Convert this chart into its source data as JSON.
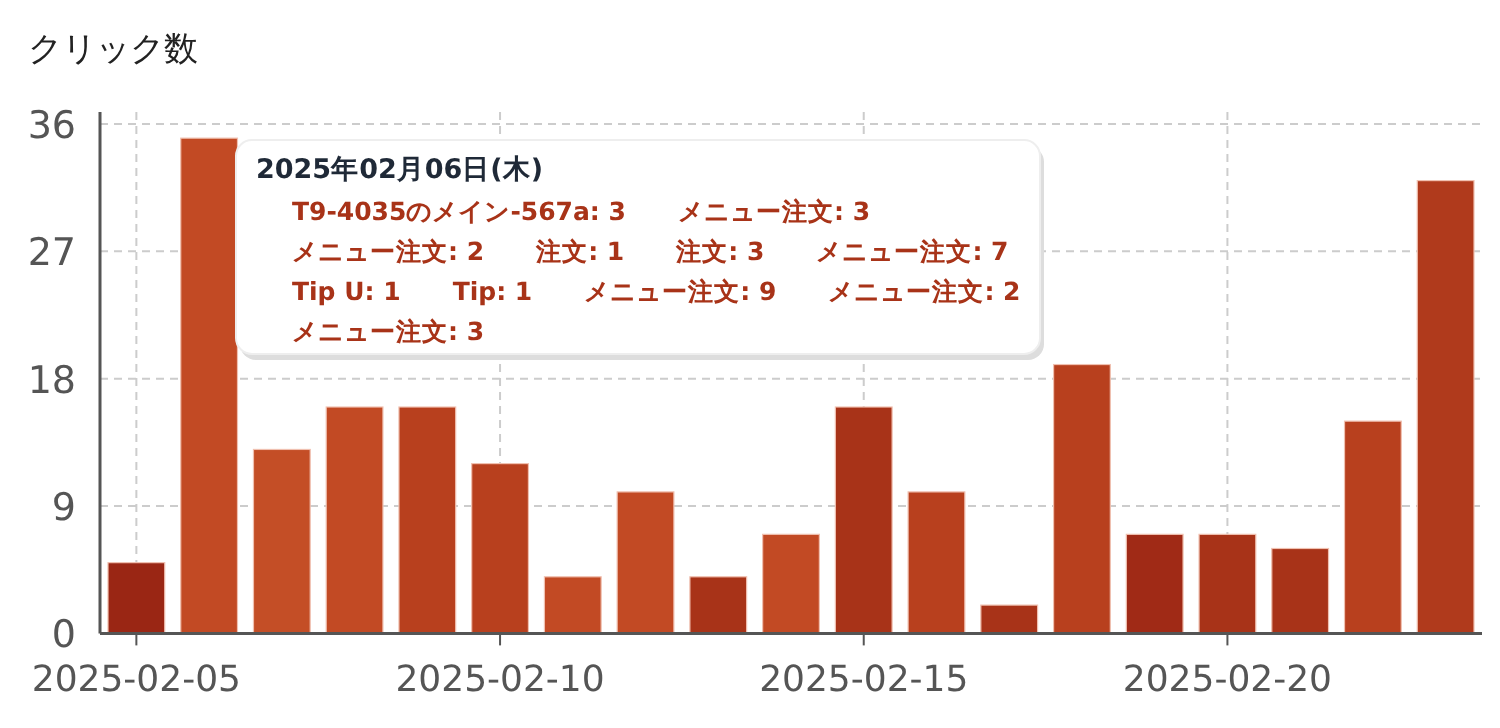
{
  "chart_data": {
    "type": "bar",
    "title": "クリック数",
    "x": [
      "2025-02-05",
      "2025-02-06",
      "2025-02-07",
      "2025-02-08",
      "2025-02-09",
      "2025-02-10",
      "2025-02-11",
      "2025-02-12",
      "2025-02-13",
      "2025-02-14",
      "2025-02-15",
      "2025-02-16",
      "2025-02-17",
      "2025-02-18",
      "2025-02-19",
      "2025-02-20",
      "2025-02-21",
      "2025-02-22",
      "2025-02-23"
    ],
    "values": [
      5,
      35,
      13,
      16,
      16,
      12,
      4,
      10,
      4,
      7,
      16,
      10,
      2,
      19,
      7,
      7,
      6,
      15,
      32
    ],
    "colors": [
      "#9a2614",
      "#c24a24",
      "#c44e26",
      "#c24a24",
      "#b8401e",
      "#b8401e",
      "#c24a24",
      "#c24a24",
      "#a83318",
      "#c24a24",
      "#a83318",
      "#b8401e",
      "#a83318",
      "#b8401e",
      "#a02a16",
      "#a83318",
      "#a83318",
      "#b8401e",
      "#b03a1c"
    ],
    "xlim": [
      "2025-02-04T12:00",
      "2025-02-23T12:00"
    ],
    "xticks": [
      {
        "value": "2025-02-05",
        "label": "2025-02-05"
      },
      {
        "value": "2025-02-10",
        "label": "2025-02-10"
      },
      {
        "value": "2025-02-15",
        "label": "2025-02-15"
      },
      {
        "value": "2025-02-20",
        "label": "2025-02-20"
      }
    ],
    "ylim": [
      0,
      36
    ],
    "yticks": [
      0,
      9,
      18,
      27,
      36
    ],
    "grid": true,
    "annotations": [
      "2025年02月06日(木)",
      "T9-4035のメイン-567a: 3",
      "メニュー注文: 3",
      "メニュー注文: 2",
      "注文: 1",
      "注文: 3",
      "メニュー注文: 7",
      "Tip U: 1",
      "Tip: 1",
      "メニュー注文: 9",
      "メニュー注文: 2",
      "メニュー注文: 3"
    ]
  }
}
